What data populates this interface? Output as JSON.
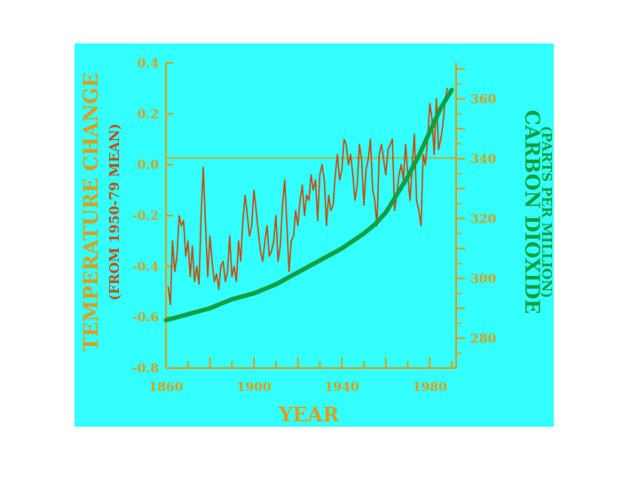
{
  "chart_data": {
    "type": "line",
    "xlabel": "YEAR",
    "ylabel": "TEMPERATURE CHANGE",
    "ylabel_sub": "(FROM 1950-79 MEAN)",
    "y2label": "CARBON DIOXIDE",
    "y2label_sub": "(PARTS PER MILLION)",
    "xlim": [
      1860,
      1992
    ],
    "ylim": [
      -0.8,
      0.4
    ],
    "y2lim": [
      270,
      372
    ],
    "x_ticks": [
      "1860",
      "1900",
      "1940",
      "1980"
    ],
    "y_ticks": [
      "0.4",
      "0.2",
      "0.0",
      "-0.2",
      "-0.4",
      "-0.6",
      "-0.8"
    ],
    "y2_ticks": [
      "360",
      "340",
      "320",
      "300",
      "280"
    ],
    "colors": {
      "background": "#33ffff",
      "axis": "#d8a020",
      "temperature": "#c05010",
      "co2": "#10a040",
      "sub_label": "#c05010"
    },
    "series": [
      {
        "key": "temperature",
        "axis": "left",
        "x": [
          1861,
          1862,
          1863,
          1864,
          1865,
          1866,
          1867,
          1868,
          1869,
          1870,
          1871,
          1872,
          1873,
          1874,
          1875,
          1876,
          1877,
          1878,
          1879,
          1880,
          1881,
          1882,
          1883,
          1884,
          1885,
          1886,
          1887,
          1888,
          1889,
          1890,
          1891,
          1892,
          1893,
          1894,
          1895,
          1896,
          1897,
          1898,
          1899,
          1900,
          1901,
          1902,
          1903,
          1904,
          1905,
          1906,
          1907,
          1908,
          1909,
          1910,
          1911,
          1912,
          1913,
          1914,
          1915,
          1916,
          1917,
          1918,
          1919,
          1920,
          1921,
          1922,
          1923,
          1924,
          1925,
          1926,
          1927,
          1928,
          1929,
          1930,
          1931,
          1932,
          1933,
          1934,
          1935,
          1936,
          1937,
          1938,
          1939,
          1940,
          1941,
          1942,
          1943,
          1944,
          1945,
          1946,
          1947,
          1948,
          1949,
          1950,
          1951,
          1952,
          1953,
          1954,
          1955,
          1956,
          1957,
          1958,
          1959,
          1960,
          1961,
          1962,
          1963,
          1964,
          1965,
          1966,
          1967,
          1968,
          1969,
          1970,
          1971,
          1972,
          1973,
          1974,
          1975,
          1976,
          1977,
          1978,
          1979,
          1980,
          1981,
          1982,
          1983,
          1984,
          1985,
          1986,
          1987,
          1988
        ],
        "values": [
          -0.48,
          -0.55,
          -0.3,
          -0.42,
          -0.36,
          -0.2,
          -0.24,
          -0.22,
          -0.36,
          -0.3,
          -0.44,
          -0.32,
          -0.46,
          -0.4,
          -0.47,
          -0.2,
          -0.01,
          -0.24,
          -0.44,
          -0.28,
          -0.38,
          -0.46,
          -0.43,
          -0.49,
          -0.4,
          -0.38,
          -0.46,
          -0.42,
          -0.28,
          -0.44,
          -0.4,
          -0.46,
          -0.3,
          -0.38,
          -0.22,
          -0.12,
          -0.2,
          -0.28,
          -0.24,
          -0.1,
          -0.18,
          -0.26,
          -0.34,
          -0.38,
          -0.3,
          -0.24,
          -0.36,
          -0.34,
          -0.3,
          -0.2,
          -0.38,
          -0.32,
          -0.16,
          -0.06,
          -0.24,
          -0.42,
          -0.3,
          -0.28,
          -0.18,
          -0.24,
          -0.14,
          -0.08,
          -0.2,
          -0.12,
          -0.14,
          -0.04,
          -0.1,
          -0.06,
          -0.22,
          -0.04,
          0.0,
          -0.06,
          -0.24,
          -0.12,
          -0.18,
          -0.16,
          -0.04,
          0.04,
          -0.06,
          -0.02,
          0.1,
          0.08,
          0.0,
          0.04,
          -0.04,
          -0.14,
          -0.08,
          0.08,
          0.02,
          -0.16,
          -0.02,
          0.02,
          0.1,
          -0.1,
          -0.14,
          -0.24,
          0.04,
          0.08,
          0.02,
          -0.04,
          0.06,
          0.08,
          0.1,
          -0.18,
          -0.12,
          -0.04,
          0.0,
          -0.06,
          0.08,
          -0.04,
          -0.14,
          0.0,
          0.12,
          -0.14,
          -0.18,
          -0.24,
          0.04,
          0.0,
          0.1,
          0.24,
          0.18,
          0.04,
          0.26,
          0.06,
          0.1,
          0.16,
          0.26,
          0.3
        ]
      },
      {
        "key": "co2",
        "axis": "right",
        "x": [
          1860,
          1870,
          1880,
          1890,
          1900,
          1910,
          1920,
          1930,
          1940,
          1950,
          1955,
          1960,
          1965,
          1970,
          1975,
          1980,
          1985,
          1990
        ],
        "values": [
          286,
          288,
          290,
          293,
          295,
          298,
          302,
          306,
          310,
          315,
          318,
          322,
          328,
          334,
          341,
          349,
          357,
          363
        ]
      }
    ]
  }
}
